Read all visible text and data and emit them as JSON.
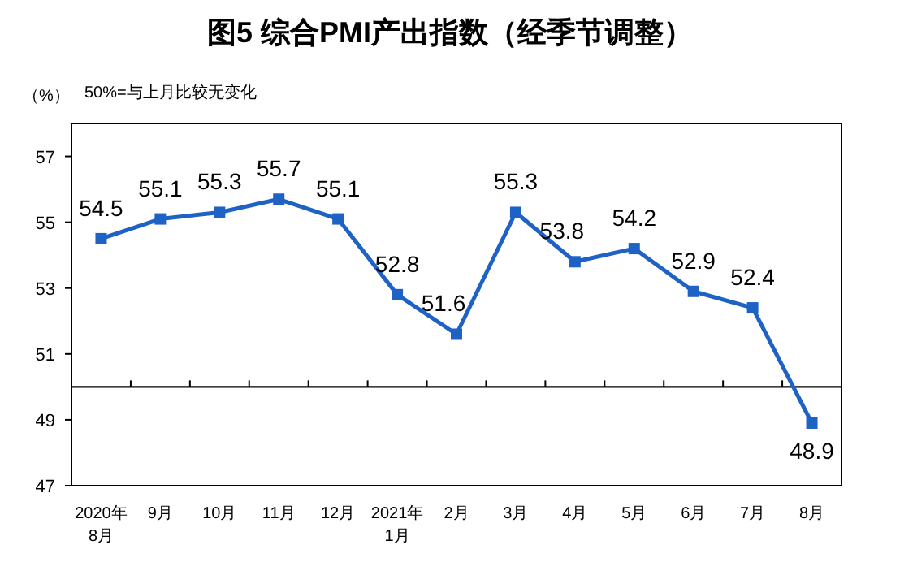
{
  "chart_data": {
    "type": "line",
    "title": "图5  综合PMI产出指数（经季节调整）",
    "ylabel": "（%）",
    "annotations": [
      "50%=与上月比较无变化"
    ],
    "categories": [
      "2020年\n8月",
      "9月",
      "10月",
      "11月",
      "12月",
      "2021年\n1月",
      "2月",
      "3月",
      "4月",
      "5月",
      "6月",
      "7月",
      "8月"
    ],
    "series": [
      {
        "color": "#1f62c6",
        "values": [
          54.5,
          55.1,
          55.3,
          55.7,
          55.1,
          52.8,
          51.6,
          55.3,
          53.8,
          54.2,
          52.9,
          52.4,
          48.9
        ]
      }
    ],
    "ylim": [
      47,
      58
    ],
    "yticks": [
      47,
      49,
      51,
      53,
      55,
      57
    ],
    "ref_lines": [
      {
        "axis": "y",
        "value": 50,
        "color": "#000000"
      }
    ],
    "marker": "square",
    "line_style": "solid",
    "data_labels": true,
    "grid": false
  }
}
